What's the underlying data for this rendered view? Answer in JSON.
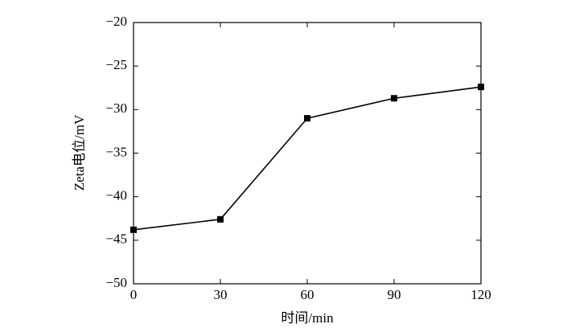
{
  "chart_data": {
    "type": "line",
    "x_label": "时间/min",
    "y_label": "Zeta电位/mV",
    "x": [
      0,
      30,
      60,
      90,
      120
    ],
    "series": [
      {
        "color": "#000000",
        "values": [
          -43.8,
          -42.6,
          -31.0,
          -28.7,
          -27.4
        ]
      }
    ],
    "xlim": [
      0,
      120
    ],
    "xticks": [
      0,
      30,
      60,
      90,
      120
    ],
    "ylim": [
      -50,
      -20
    ],
    "yticks": [
      {
        "value": -50,
        "label": "−50"
      },
      {
        "value": -45,
        "label": "−45"
      },
      {
        "value": -40,
        "label": "−40"
      },
      {
        "value": -35,
        "label": "−35"
      },
      {
        "value": -30,
        "label": "−30"
      },
      {
        "value": -25,
        "label": "−25"
      },
      {
        "value": -20,
        "label": "−20"
      }
    ],
    "grid": false,
    "marker": "square"
  }
}
